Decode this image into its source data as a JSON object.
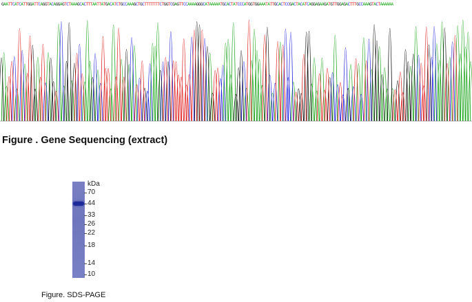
{
  "sequencing": {
    "bases": "GAATTCATCATTGGATTCAGGTACAGGAGTCTAAAGCACTTTAATTATGACATCTGCCAAAGCTGCTTTTTTTCTGGTCGAGTTCCAAAAGGGCATAAAAATGCACTATCCCATGGTGGAAATATTGCACTCCGACTACATCAGGAGAAGATGTTGGAGACTTTGCCAAAGTACTAAAAAA",
    "colors": {
      "A": "#1aa51a",
      "C": "#2222dd",
      "G": "#111111",
      "T": "#e01e1e"
    }
  },
  "captions": {
    "sequencing": "Figure . Gene Sequencing (extract)",
    "gel": "Figure. SDS-PAGE"
  },
  "gel": {
    "unit": "kDa",
    "markers": [
      "70",
      "44",
      "33",
      "26",
      "22",
      "18",
      "14",
      "10"
    ],
    "band_marker": "44"
  }
}
